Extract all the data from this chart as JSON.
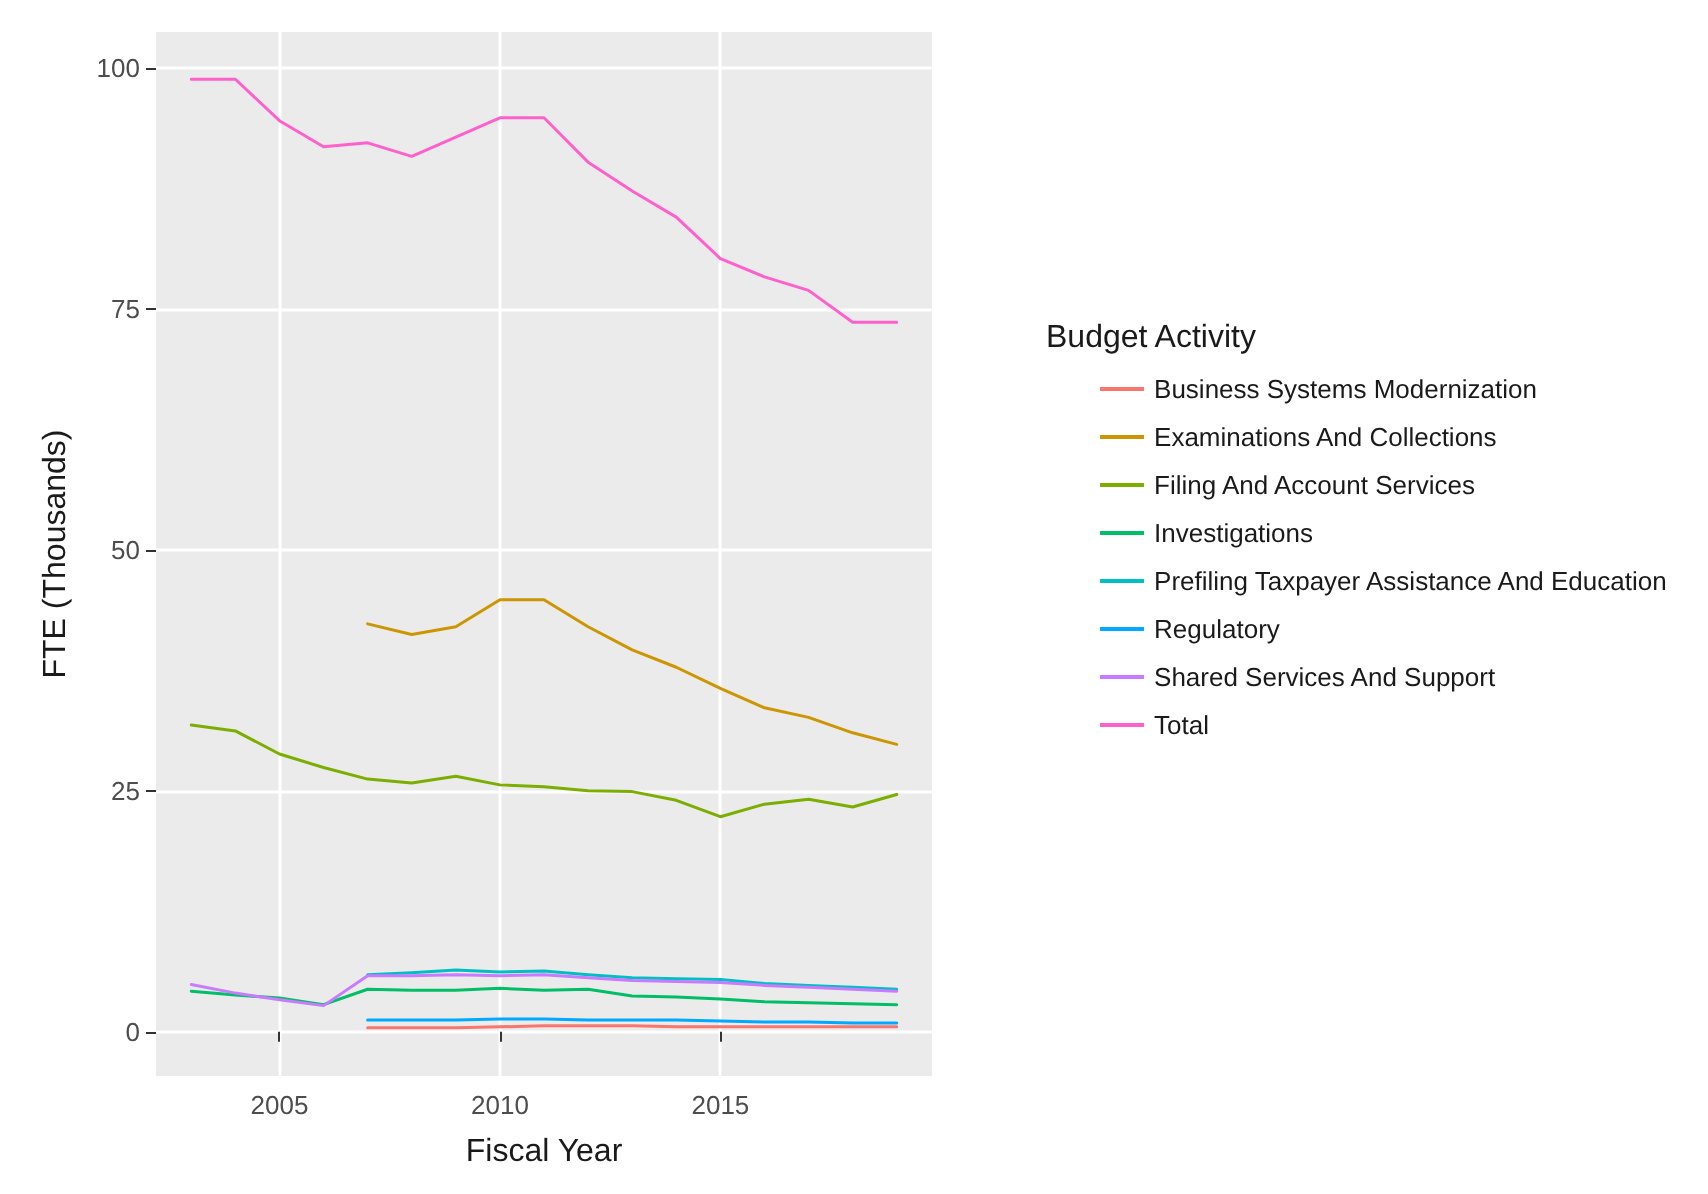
{
  "chart_data": {
    "type": "line",
    "xlabel": "Fiscal Year",
    "ylabel": "FTE (Thousands)",
    "legend_title": "Budget Activity",
    "legend": "right",
    "grid": true,
    "x": [
      2003,
      2004,
      2005,
      2006,
      2007,
      2008,
      2009,
      2010,
      2011,
      2012,
      2013,
      2014,
      2015,
      2016,
      2017,
      2018,
      2019
    ],
    "xlim": [
      2002.2,
      2019.8
    ],
    "xticks": [
      2005,
      2010,
      2015
    ],
    "ylim": [
      -4.6,
      103.7
    ],
    "yticks": [
      0,
      25,
      50,
      75,
      100
    ],
    "series": [
      {
        "name": "Business Systems Modernization",
        "color": "#f8766d",
        "values": [
          null,
          null,
          null,
          null,
          0.4,
          0.4,
          0.4,
          0.5,
          0.6,
          0.6,
          0.6,
          0.5,
          0.5,
          0.5,
          0.5,
          0.5,
          0.5
        ]
      },
      {
        "name": "Examinations And Collections",
        "color": "#cd9600",
        "values": [
          null,
          null,
          null,
          null,
          42.3,
          41.2,
          42.0,
          44.8,
          44.8,
          42.0,
          39.6,
          37.8,
          35.6,
          33.6,
          32.6,
          31.0,
          29.8
        ]
      },
      {
        "name": "Filing And Account Services",
        "color": "#7cae00",
        "values": [
          31.8,
          31.2,
          28.8,
          27.4,
          26.2,
          25.8,
          26.5,
          25.6,
          25.4,
          25.0,
          24.9,
          24.0,
          22.3,
          23.6,
          24.1,
          23.3,
          24.6
        ]
      },
      {
        "name": "Investigations",
        "color": "#00be67",
        "values": [
          4.2,
          3.8,
          3.5,
          2.8,
          4.4,
          4.3,
          4.3,
          4.5,
          4.3,
          4.4,
          3.7,
          3.6,
          3.4,
          3.1,
          3.0,
          2.9,
          2.8
        ]
      },
      {
        "name": "Prefiling Taxpayer Assistance And Education",
        "color": "#00bfc4",
        "values": [
          null,
          null,
          null,
          null,
          5.9,
          6.1,
          6.4,
          6.2,
          6.3,
          5.9,
          5.6,
          5.5,
          5.4,
          5.0,
          4.8,
          4.6,
          4.4
        ]
      },
      {
        "name": "Regulatory",
        "color": "#00a9ff",
        "values": [
          null,
          null,
          null,
          null,
          1.2,
          1.2,
          1.2,
          1.3,
          1.3,
          1.2,
          1.2,
          1.2,
          1.1,
          1.0,
          1.0,
          0.9,
          0.9
        ]
      },
      {
        "name": "Shared Services And Support",
        "color": "#c77cff",
        "values": [
          4.9,
          4.0,
          3.3,
          2.7,
          5.8,
          5.8,
          5.9,
          5.8,
          5.9,
          5.6,
          5.3,
          5.2,
          5.1,
          4.8,
          4.6,
          4.4,
          4.2
        ]
      },
      {
        "name": "Total",
        "color": "#ff61cc",
        "values": [
          98.8,
          98.8,
          94.5,
          91.8,
          92.2,
          90.8,
          92.8,
          94.8,
          94.8,
          90.2,
          87.2,
          84.5,
          80.2,
          78.3,
          76.9,
          73.6,
          73.6
        ]
      }
    ]
  }
}
